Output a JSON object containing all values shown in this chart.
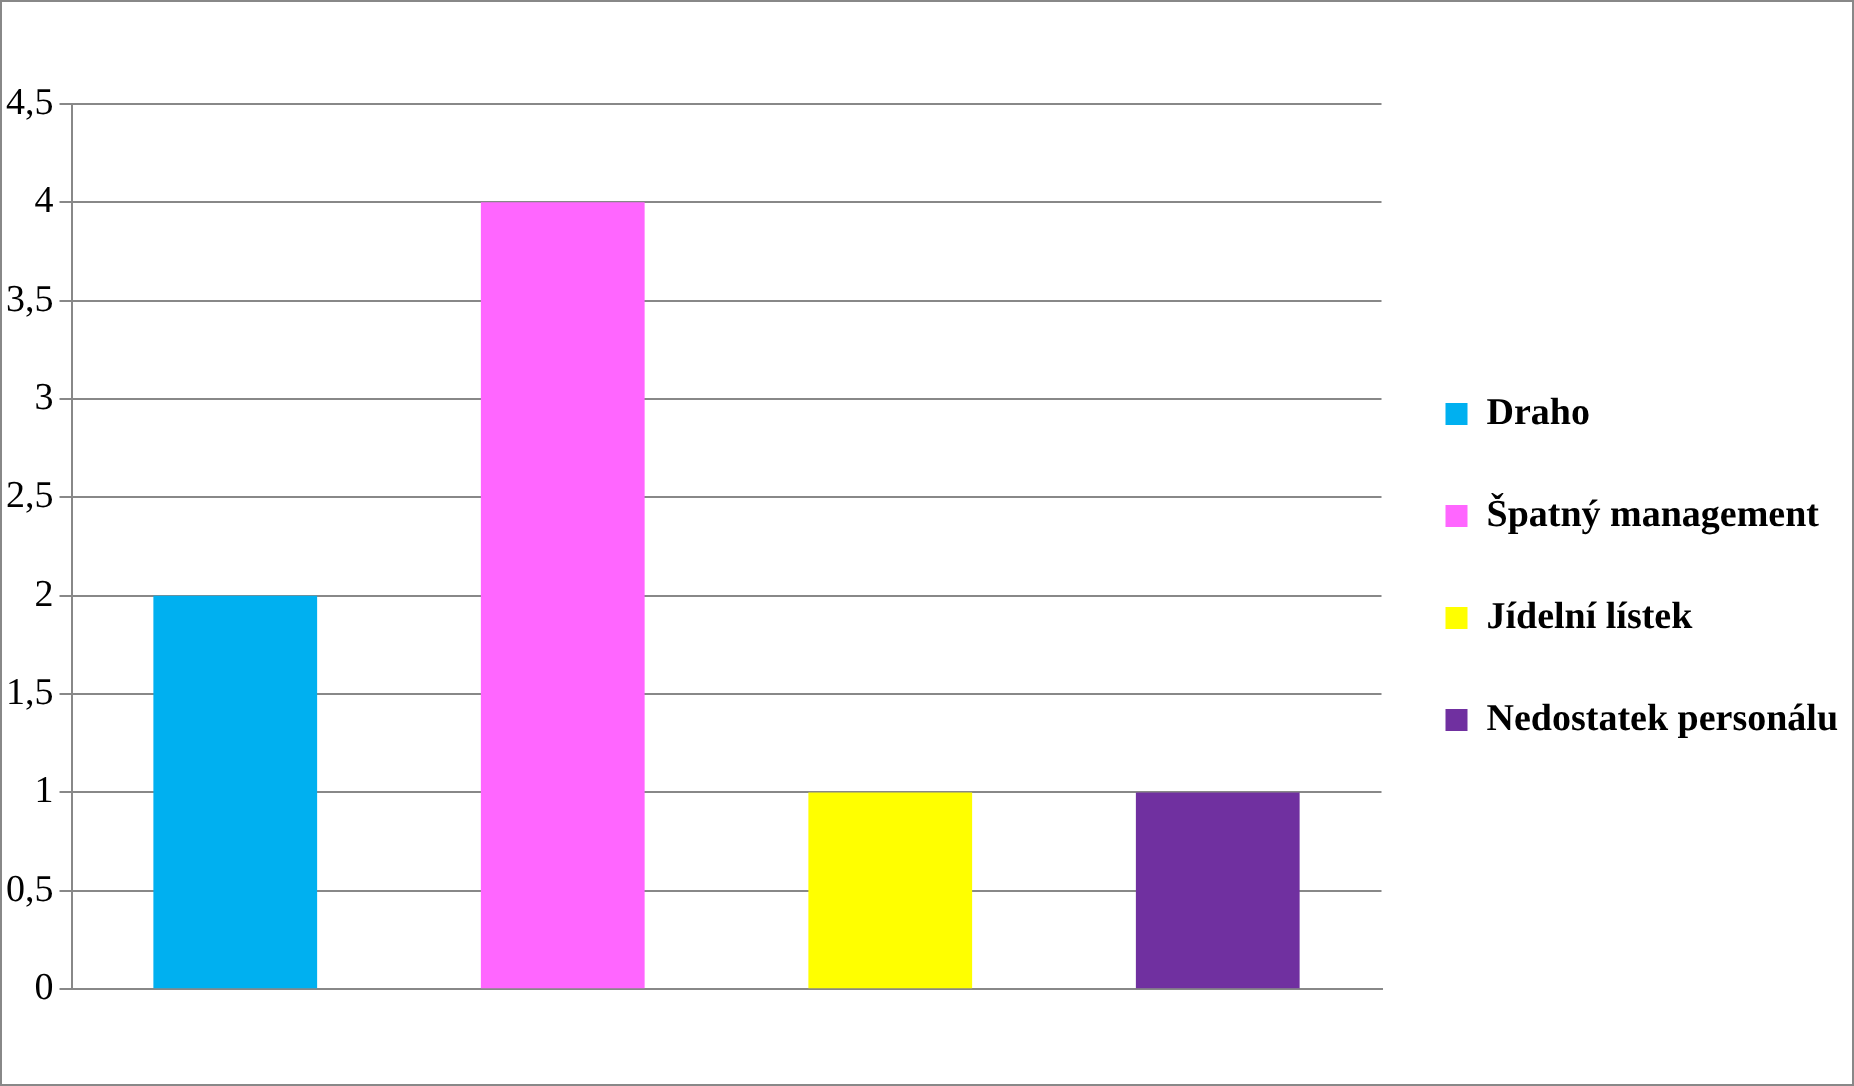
{
  "chart_data": {
    "type": "bar",
    "categories": [
      null,
      null,
      null,
      null
    ],
    "series": [
      {
        "name": "Draho",
        "color": "#00b0f0",
        "values": [
          2,
          null,
          null,
          null
        ]
      },
      {
        "name": "Špatný management",
        "color": "#ff66ff",
        "values": [
          null,
          4,
          null,
          null
        ]
      },
      {
        "name": "Jídelní lístek",
        "color": "#ffff00",
        "values": [
          null,
          null,
          1,
          null
        ]
      },
      {
        "name": "Nedostatek personálu",
        "color": "#7030a0",
        "values": [
          null,
          null,
          null,
          1
        ]
      }
    ],
    "ylim": [
      0,
      4.5
    ],
    "yticks": [
      0,
      {
        "value": 0.5,
        "label": "0,5"
      },
      1,
      {
        "value": 1.5,
        "label": "1,5"
      },
      2,
      {
        "value": 2.5,
        "label": "2,5"
      },
      3,
      {
        "value": 3.5,
        "label": "3,5"
      },
      4,
      {
        "value": 4.5,
        "label": "4,5"
      }
    ],
    "grid": "y",
    "legend": "right"
  }
}
